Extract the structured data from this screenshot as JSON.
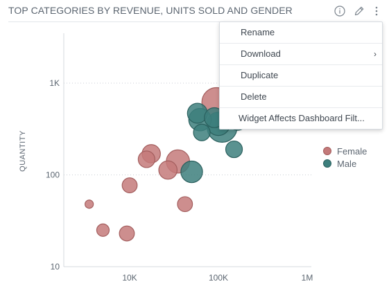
{
  "widget": {
    "title": "TOP CATEGORIES BY REVENUE, UNITS SOLD AND GENDER",
    "icons": [
      "info-icon",
      "pencil-icon",
      "kebab-menu-icon"
    ]
  },
  "context_menu": {
    "items": [
      {
        "label": "Rename",
        "has_submenu": false
      },
      {
        "label": "Download",
        "has_submenu": true
      },
      {
        "label": "Duplicate",
        "has_submenu": false
      },
      {
        "label": "Delete",
        "has_submenu": false
      },
      {
        "label": "Widget Affects Dashboard Filt...",
        "has_submenu": false
      }
    ],
    "submenu_glyph": "›"
  },
  "legend": {
    "items": [
      {
        "label": "Female",
        "color": "#c47a7a"
      },
      {
        "label": "Male",
        "color": "#3d7f7d"
      }
    ]
  },
  "chart_data": {
    "type": "scatter",
    "xlabel": "",
    "ylabel": "QUANTITY",
    "x_scale": "log",
    "y_scale": "log",
    "xlim": [
      2000,
      1000000
    ],
    "ylim": [
      10,
      3000
    ],
    "x_ticks": [
      {
        "value": 10000,
        "label": "10K"
      },
      {
        "value": 100000,
        "label": "100K"
      },
      {
        "value": 1000000,
        "label": "1M"
      }
    ],
    "y_ticks": [
      {
        "value": 10,
        "label": "10"
      },
      {
        "value": 100,
        "label": "100"
      },
      {
        "value": 1000,
        "label": "1K"
      }
    ],
    "grid": "horizontal dotted",
    "legend_position": "right",
    "series": [
      {
        "name": "Female",
        "color": "#c47a7a",
        "points": [
          {
            "x": 3500,
            "y": 48,
            "size": 1
          },
          {
            "x": 5000,
            "y": 25,
            "size": 1.5
          },
          {
            "x": 9300,
            "y": 23,
            "size": 1.8
          },
          {
            "x": 10000,
            "y": 77,
            "size": 1.8
          },
          {
            "x": 15500,
            "y": 148,
            "size": 2.0
          },
          {
            "x": 17500,
            "y": 170,
            "size": 2.2
          },
          {
            "x": 27000,
            "y": 113,
            "size": 2.2
          },
          {
            "x": 35000,
            "y": 140,
            "size": 2.8
          },
          {
            "x": 42000,
            "y": 48,
            "size": 1.8
          },
          {
            "x": 95000,
            "y": 620,
            "size": 3.5
          }
        ]
      },
      {
        "name": "Male",
        "color": "#3d7f7d",
        "points": [
          {
            "x": 50000,
            "y": 108,
            "size": 2.6
          },
          {
            "x": 58000,
            "y": 470,
            "size": 2.4
          },
          {
            "x": 62000,
            "y": 400,
            "size": 2.7
          },
          {
            "x": 65000,
            "y": 290,
            "size": 2.0
          },
          {
            "x": 90000,
            "y": 420,
            "size": 2.4
          },
          {
            "x": 100000,
            "y": 360,
            "size": 2.8
          },
          {
            "x": 110000,
            "y": 330,
            "size": 3.6
          },
          {
            "x": 150000,
            "y": 190,
            "size": 2.0
          },
          {
            "x": 165000,
            "y": 385,
            "size": 2.2
          }
        ]
      }
    ]
  }
}
